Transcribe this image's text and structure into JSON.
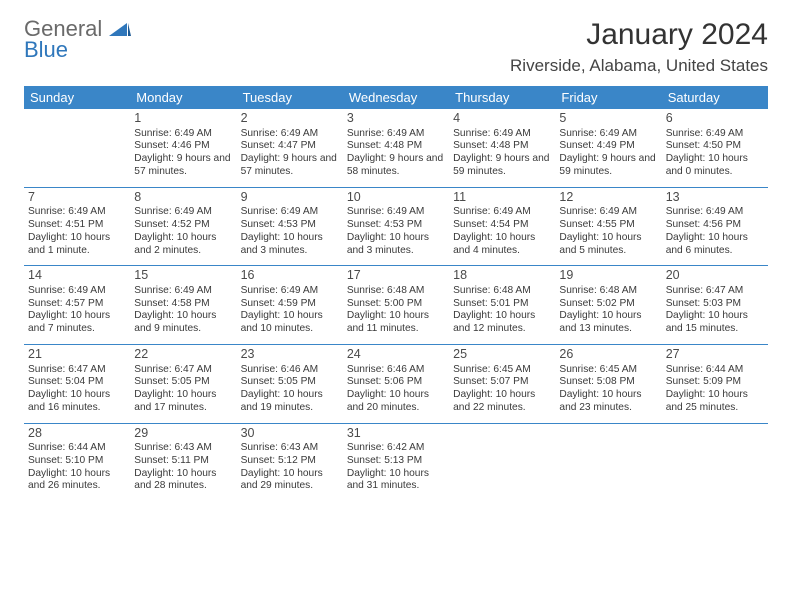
{
  "logo": {
    "general": "General",
    "blue": "Blue"
  },
  "title": "January 2024",
  "location": "Riverside, Alabama, United States",
  "colors": {
    "header_bg": "#3a86c8",
    "header_text": "#ffffff",
    "row_border": "#3a86c8",
    "logo_blue": "#2f77bb",
    "logo_gray": "#6a6a6a",
    "body_text": "#3a3a3a"
  },
  "weekdays": [
    "Sunday",
    "Monday",
    "Tuesday",
    "Wednesday",
    "Thursday",
    "Friday",
    "Saturday"
  ],
  "weeks": [
    [
      null,
      {
        "n": "1",
        "sunrise": "6:49 AM",
        "sunset": "4:46 PM",
        "daylight": "9 hours and 57 minutes."
      },
      {
        "n": "2",
        "sunrise": "6:49 AM",
        "sunset": "4:47 PM",
        "daylight": "9 hours and 57 minutes."
      },
      {
        "n": "3",
        "sunrise": "6:49 AM",
        "sunset": "4:48 PM",
        "daylight": "9 hours and 58 minutes."
      },
      {
        "n": "4",
        "sunrise": "6:49 AM",
        "sunset": "4:48 PM",
        "daylight": "9 hours and 59 minutes."
      },
      {
        "n": "5",
        "sunrise": "6:49 AM",
        "sunset": "4:49 PM",
        "daylight": "9 hours and 59 minutes."
      },
      {
        "n": "6",
        "sunrise": "6:49 AM",
        "sunset": "4:50 PM",
        "daylight": "10 hours and 0 minutes."
      }
    ],
    [
      {
        "n": "7",
        "sunrise": "6:49 AM",
        "sunset": "4:51 PM",
        "daylight": "10 hours and 1 minute."
      },
      {
        "n": "8",
        "sunrise": "6:49 AM",
        "sunset": "4:52 PM",
        "daylight": "10 hours and 2 minutes."
      },
      {
        "n": "9",
        "sunrise": "6:49 AM",
        "sunset": "4:53 PM",
        "daylight": "10 hours and 3 minutes."
      },
      {
        "n": "10",
        "sunrise": "6:49 AM",
        "sunset": "4:53 PM",
        "daylight": "10 hours and 3 minutes."
      },
      {
        "n": "11",
        "sunrise": "6:49 AM",
        "sunset": "4:54 PM",
        "daylight": "10 hours and 4 minutes."
      },
      {
        "n": "12",
        "sunrise": "6:49 AM",
        "sunset": "4:55 PM",
        "daylight": "10 hours and 5 minutes."
      },
      {
        "n": "13",
        "sunrise": "6:49 AM",
        "sunset": "4:56 PM",
        "daylight": "10 hours and 6 minutes."
      }
    ],
    [
      {
        "n": "14",
        "sunrise": "6:49 AM",
        "sunset": "4:57 PM",
        "daylight": "10 hours and 7 minutes."
      },
      {
        "n": "15",
        "sunrise": "6:49 AM",
        "sunset": "4:58 PM",
        "daylight": "10 hours and 9 minutes."
      },
      {
        "n": "16",
        "sunrise": "6:49 AM",
        "sunset": "4:59 PM",
        "daylight": "10 hours and 10 minutes."
      },
      {
        "n": "17",
        "sunrise": "6:48 AM",
        "sunset": "5:00 PM",
        "daylight": "10 hours and 11 minutes."
      },
      {
        "n": "18",
        "sunrise": "6:48 AM",
        "sunset": "5:01 PM",
        "daylight": "10 hours and 12 minutes."
      },
      {
        "n": "19",
        "sunrise": "6:48 AM",
        "sunset": "5:02 PM",
        "daylight": "10 hours and 13 minutes."
      },
      {
        "n": "20",
        "sunrise": "6:47 AM",
        "sunset": "5:03 PM",
        "daylight": "10 hours and 15 minutes."
      }
    ],
    [
      {
        "n": "21",
        "sunrise": "6:47 AM",
        "sunset": "5:04 PM",
        "daylight": "10 hours and 16 minutes."
      },
      {
        "n": "22",
        "sunrise": "6:47 AM",
        "sunset": "5:05 PM",
        "daylight": "10 hours and 17 minutes."
      },
      {
        "n": "23",
        "sunrise": "6:46 AM",
        "sunset": "5:05 PM",
        "daylight": "10 hours and 19 minutes."
      },
      {
        "n": "24",
        "sunrise": "6:46 AM",
        "sunset": "5:06 PM",
        "daylight": "10 hours and 20 minutes."
      },
      {
        "n": "25",
        "sunrise": "6:45 AM",
        "sunset": "5:07 PM",
        "daylight": "10 hours and 22 minutes."
      },
      {
        "n": "26",
        "sunrise": "6:45 AM",
        "sunset": "5:08 PM",
        "daylight": "10 hours and 23 minutes."
      },
      {
        "n": "27",
        "sunrise": "6:44 AM",
        "sunset": "5:09 PM",
        "daylight": "10 hours and 25 minutes."
      }
    ],
    [
      {
        "n": "28",
        "sunrise": "6:44 AM",
        "sunset": "5:10 PM",
        "daylight": "10 hours and 26 minutes."
      },
      {
        "n": "29",
        "sunrise": "6:43 AM",
        "sunset": "5:11 PM",
        "daylight": "10 hours and 28 minutes."
      },
      {
        "n": "30",
        "sunrise": "6:43 AM",
        "sunset": "5:12 PM",
        "daylight": "10 hours and 29 minutes."
      },
      {
        "n": "31",
        "sunrise": "6:42 AM",
        "sunset": "5:13 PM",
        "daylight": "10 hours and 31 minutes."
      },
      null,
      null,
      null
    ]
  ]
}
